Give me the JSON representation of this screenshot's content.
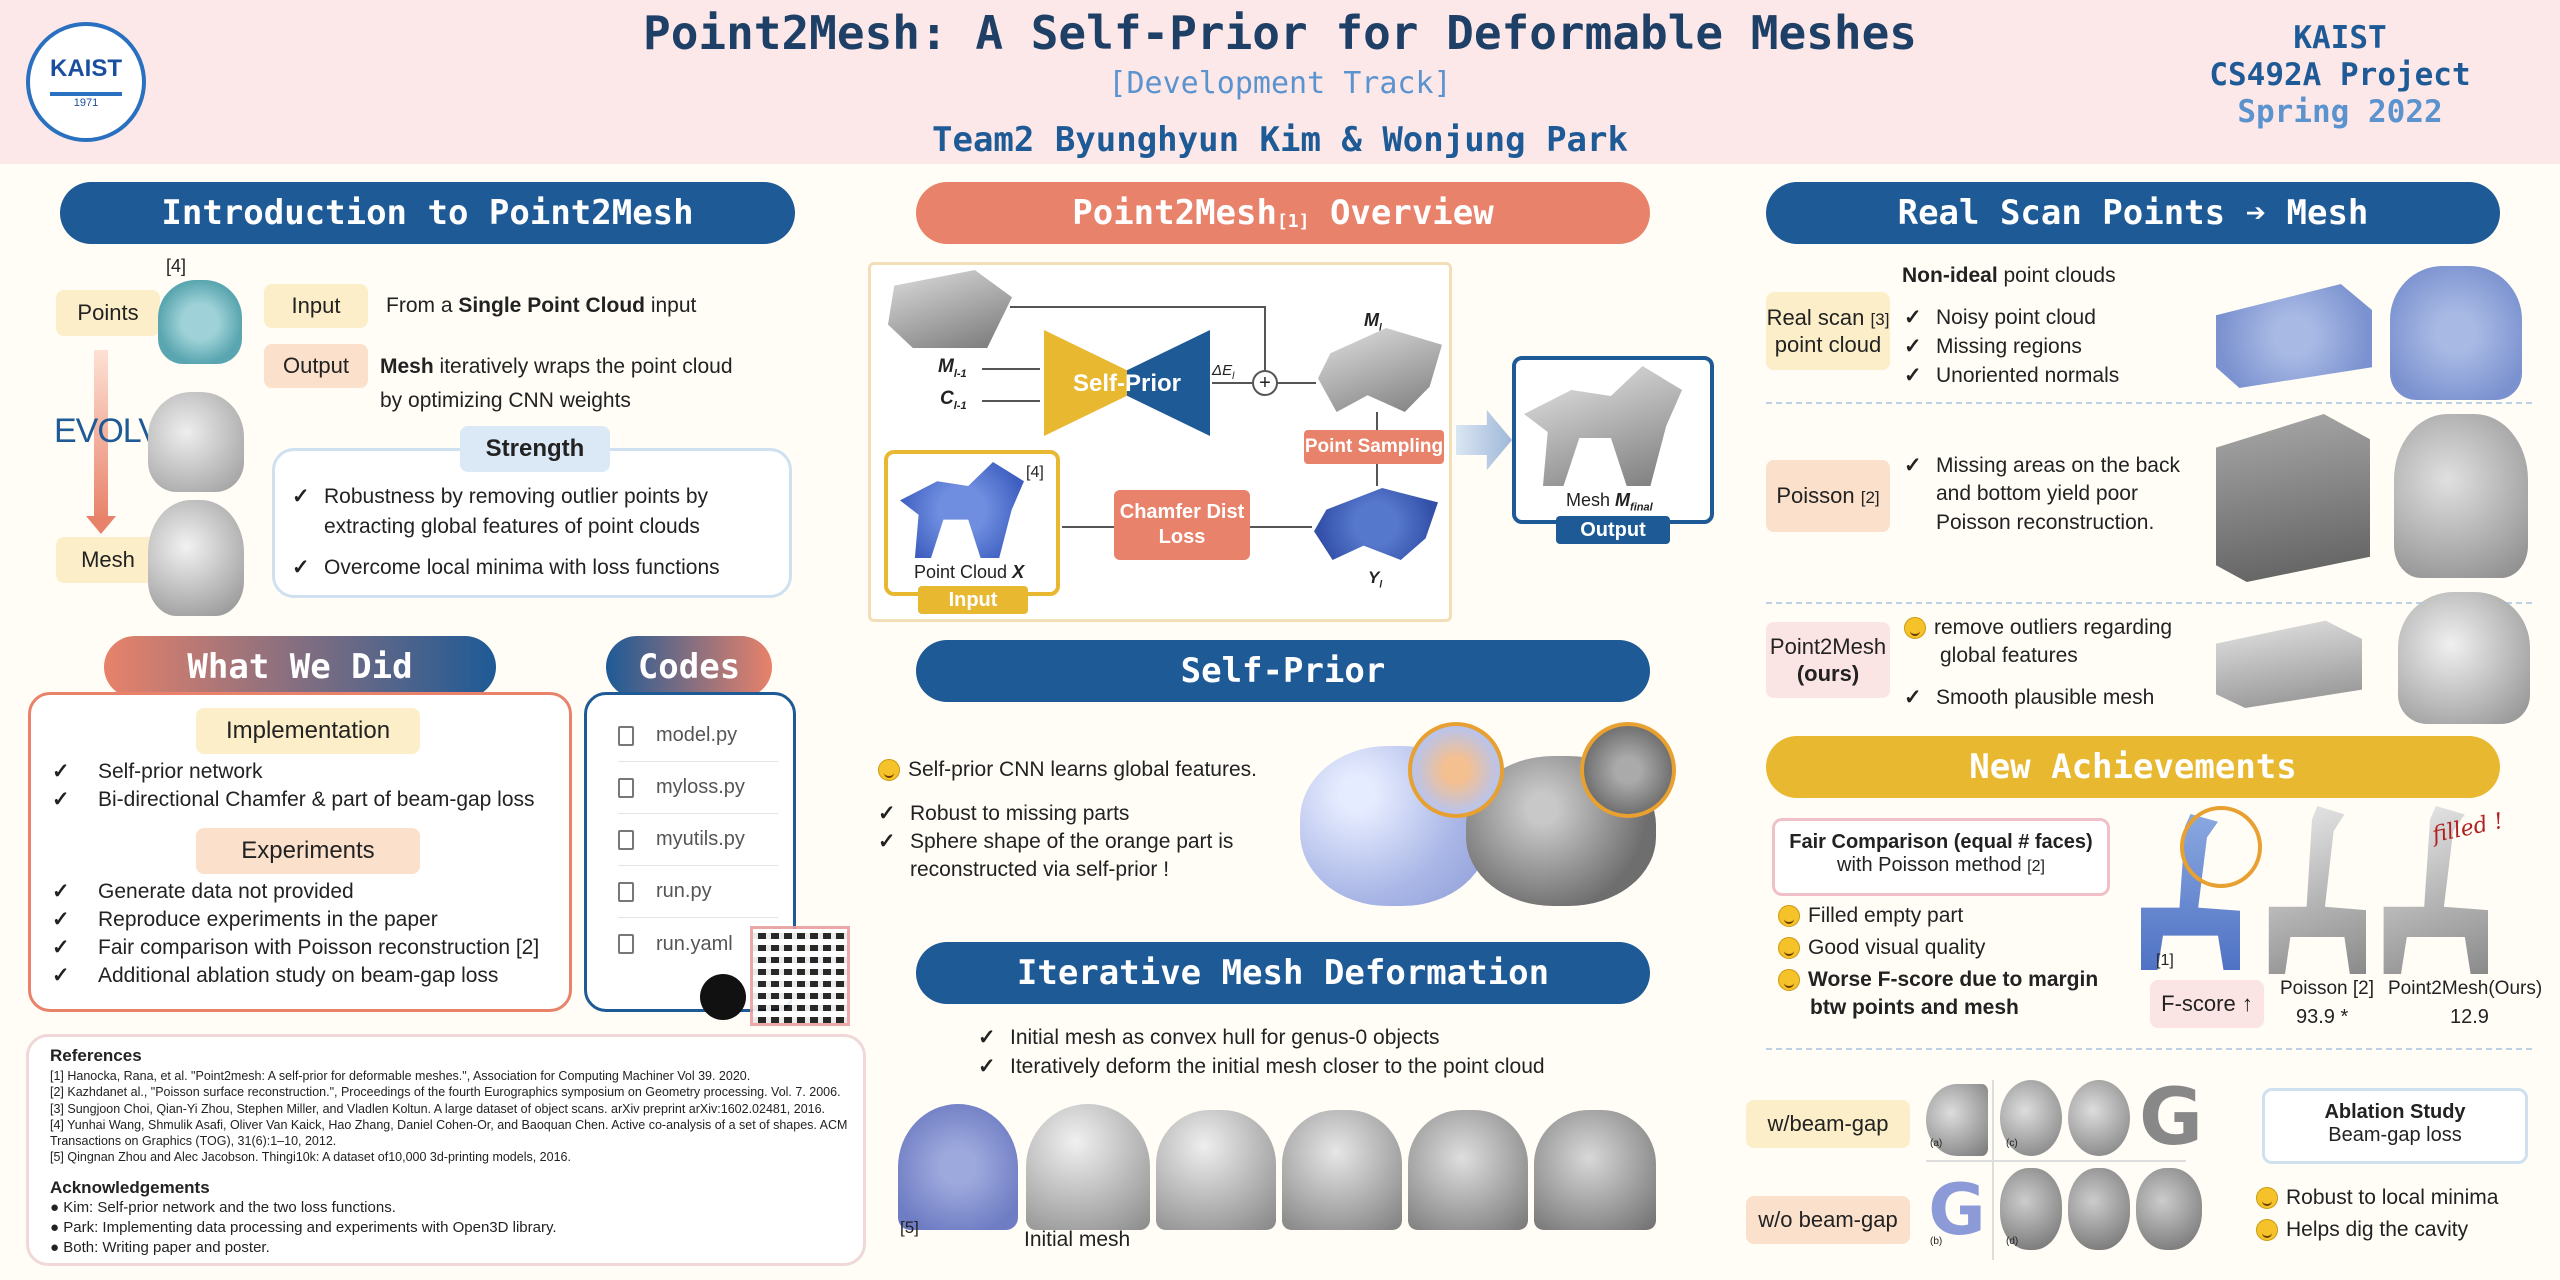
{
  "header": {
    "title": "Point2Mesh: A Self-Prior for Deformable Meshes",
    "track": "[Development Track]",
    "authors": "Team2 Byunghyun Kim & Wonjung Park",
    "logo_text": "KAIST",
    "logo_year": "1971",
    "org": "KAIST",
    "course": "CS492A Project",
    "term": "Spring 2022"
  },
  "intro": {
    "title": "Introduction to Point2Mesh",
    "points_label": "Points",
    "mesh_label": "Mesh",
    "evolve": "EVOLVE",
    "ref_mark": "[4]",
    "input_label": "Input",
    "input_pre": "From a ",
    "input_bold": "Single Point Cloud",
    "input_post": " input",
    "output_label": "Output",
    "output_bold": "Mesh",
    "output_rest": " iteratively wraps the point cloud",
    "output_line2": "by optimizing CNN weights",
    "strength_title": "Strength",
    "strength_1a": "Robustness by removing outlier points by",
    "strength_1b": "extracting global features of point clouds",
    "strength_2": "Overcome local minima with loss functions"
  },
  "whatwedid": {
    "title": "What We Did",
    "impl_title": "Implementation",
    "impl": [
      "Self-prior network",
      "Bi-directional Chamfer & part of beam-gap loss"
    ],
    "exp_title": "Experiments",
    "exp": [
      "Generate data not provided",
      "Reproduce experiments in the paper",
      "Fair comparison with Poisson reconstruction [2]",
      "Additional ablation study on beam-gap loss"
    ]
  },
  "codes": {
    "title": "Codes",
    "files": [
      "model.py",
      "myloss.py",
      "myutils.py",
      "run.py",
      "run.yaml"
    ]
  },
  "references": {
    "title": "References",
    "items": [
      "[1] Hanocka, Rana, et al. \"Point2mesh: A self-prior for deformable meshes.\", Association for Computing Machiner Vol 39. 2020.",
      "[2] Kazhdanet al., \"Poisson surface reconstruction.\", Proceedings of the fourth Eurographics symposium on Geometry processing. Vol. 7. 2006.",
      "[3] Sungjoon Choi, Qian-Yi Zhou, Stephen Miller, and Vladlen Koltun. A large dataset of object scans. arXiv preprint arXiv:1602.02481, 2016.",
      "[4] Yunhai Wang, Shmulik Asafi, Oliver Van Kaick, Hao Zhang, Daniel Cohen-Or, and Baoquan Chen. Active co-analysis of a set of shapes. ACM",
      "Transactions on Graphics (TOG), 31(6):1–10, 2012.",
      "[5] Qingnan Zhou and Alec Jacobson. Thingi10k: A dataset of10,000 3d-printing models, 2016."
    ],
    "ack_title": "Acknowledgements",
    "ack": [
      "● Kim: Self-prior network and the two loss functions.",
      "● Park: Implementing data processing and experiments with Open3D library.",
      "● Both: Writing paper and poster."
    ]
  },
  "overview": {
    "title_main": "Point2Mesh",
    "title_ref": "[1]",
    "title_post": " Overview",
    "m_prev": "M",
    "m_prev_sub": "l-1",
    "c_prev": "C",
    "c_prev_sub": "l-1",
    "self_prior": "Self-Prior",
    "delta": "ΔE",
    "delta_sub": "l",
    "plus": "+",
    "m_l": "M",
    "m_l_sub": "l",
    "point_sampling": "Point Sampling",
    "chamfer": "Chamfer Dist Loss",
    "y_l": "Y",
    "y_l_sub": "l",
    "pc_label": "Point Cloud ",
    "pc_x": "X",
    "input": "Input",
    "ref4": "[4]",
    "mesh_final": "Mesh ",
    "mesh_final_m": "M",
    "mesh_final_sub": "final",
    "output": "Output"
  },
  "selfprior": {
    "title": "Self-Prior",
    "line1": "Self-prior CNN learns global features.",
    "b1": "Robust to missing parts",
    "b2a": "Sphere shape of the orange part is",
    "b2b": "reconstructed via self-prior !"
  },
  "deform": {
    "title": "Iterative Mesh Deformation",
    "b1": "Initial mesh as convex hull for genus-0 objects",
    "b2": "Iteratively deform the initial mesh closer to the point cloud",
    "ref5": "[5]",
    "initial": "Initial mesh"
  },
  "realscan": {
    "title": "Real Scan Points ➔ Mesh",
    "heading_bold": "Non-ideal",
    "heading_rest": " point clouds",
    "tag1a": "Real scan ",
    "tag1ref": "[3]",
    "tag1b": "point cloud",
    "b1": "Noisy point cloud",
    "b2": "Missing regions",
    "b3": "Unoriented normals",
    "tag2": "Poisson ",
    "tag2ref": "[2]",
    "p1": "Missing areas on the back",
    "p2": "and bottom yield poor",
    "p3": "Poisson reconstruction.",
    "tag3a": "Point2Mesh",
    "tag3b": "(ours)",
    "o1a": "remove outliers regarding",
    "o1b": "global features",
    "o2": "Smooth plausible mesh"
  },
  "achieve": {
    "title": "New Achievements",
    "fair_bold": "Fair Comparison (equal # faces)",
    "fair_sub": "with Poisson method ",
    "fair_ref": "[2]",
    "e1": "Filled empty part",
    "e2": "Good visual quality",
    "e3a": "Worse F-score due to margin",
    "e3b": "btw points and mesh",
    "ref1": "[1]",
    "fscore": "F-score ↑",
    "poisson_label": "Poisson [2]",
    "poisson_val": "93.9 *",
    "ours_label": "Point2Mesh(Ours)",
    "ours_val": "12.9",
    "filled": "filled !",
    "wbg": "w/beam-gap",
    "wobg": "w/o beam-gap",
    "abl_title": "Ablation Study",
    "abl_sub": "Beam-gap loss",
    "abl1": "Robust to local minima",
    "abl2": "Helps dig the cavity",
    "letters": [
      "(a)",
      "(c)",
      "(b)",
      "(d)"
    ]
  },
  "colors": {
    "navy": "#1e3f66",
    "blue": "#1e5a96",
    "orange": "#e8826a",
    "yellow": "#e8b830"
  }
}
